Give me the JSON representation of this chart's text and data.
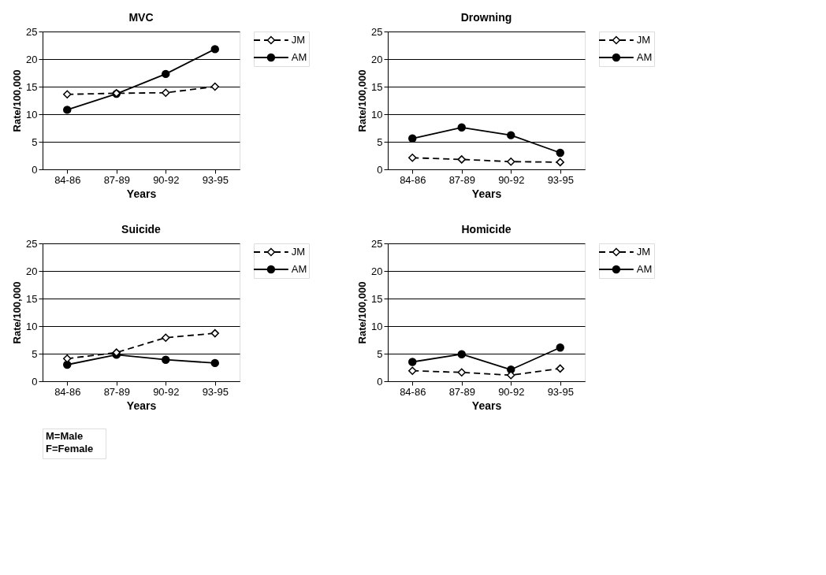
{
  "chart_data": [
    {
      "type": "line",
      "title": "MVC",
      "xlabel": "Years",
      "ylabel": "Rate/100,000",
      "categories": [
        "84-86",
        "87-89",
        "90-92",
        "93-95"
      ],
      "ylim": [
        0,
        25
      ],
      "yticks": [
        0,
        5,
        10,
        15,
        20,
        25
      ],
      "grid": "y",
      "legend": "right",
      "series": [
        {
          "name": "JM",
          "color": "#000000",
          "marker": "diamond",
          "line_style": "dashed",
          "values": [
            13.6,
            13.8,
            13.9,
            15.0
          ]
        },
        {
          "name": "AM",
          "color": "#000000",
          "marker": "circle",
          "line_style": "solid",
          "values": [
            10.8,
            13.7,
            17.3,
            21.8
          ]
        }
      ]
    },
    {
      "type": "line",
      "title": "Drowning",
      "xlabel": "Years",
      "ylabel": "Rate/100,000",
      "categories": [
        "84-86",
        "87-89",
        "90-92",
        "93-95"
      ],
      "ylim": [
        0,
        25
      ],
      "yticks": [
        0,
        5,
        10,
        15,
        20,
        25
      ],
      "grid": "y",
      "legend": "right",
      "series": [
        {
          "name": "JM",
          "color": "#000000",
          "marker": "diamond",
          "line_style": "dashed",
          "values": [
            2.1,
            1.8,
            1.4,
            1.3
          ]
        },
        {
          "name": "AM",
          "color": "#000000",
          "marker": "circle",
          "line_style": "solid",
          "values": [
            5.6,
            7.6,
            6.2,
            3.0
          ]
        }
      ]
    },
    {
      "type": "line",
      "title": "Suicide",
      "xlabel": "Years",
      "ylabel": "Rate/100,000",
      "categories": [
        "84-86",
        "87-89",
        "90-92",
        "93-95"
      ],
      "ylim": [
        0,
        25
      ],
      "yticks": [
        0,
        5,
        10,
        15,
        20,
        25
      ],
      "grid": "y",
      "legend": "right",
      "annotations": [
        "M=Male\nF=Female"
      ],
      "series": [
        {
          "name": "JM",
          "color": "#000000",
          "marker": "diamond",
          "line_style": "dashed",
          "values": [
            4.1,
            5.2,
            7.9,
            8.7
          ]
        },
        {
          "name": "AM",
          "color": "#000000",
          "marker": "circle",
          "line_style": "solid",
          "values": [
            3.0,
            4.8,
            3.9,
            3.3
          ]
        }
      ]
    },
    {
      "type": "line",
      "title": "Homicide",
      "xlabel": "Years",
      "ylabel": "Rate/100,000",
      "categories": [
        "84-86",
        "87-89",
        "90-92",
        "93-95"
      ],
      "ylim": [
        0,
        25
      ],
      "yticks": [
        0,
        5,
        10,
        15,
        20,
        25
      ],
      "grid": "y",
      "legend": "right",
      "series": [
        {
          "name": "JM",
          "color": "#000000",
          "marker": "diamond",
          "line_style": "dashed",
          "values": [
            1.9,
            1.6,
            1.1,
            2.3
          ]
        },
        {
          "name": "AM",
          "color": "#000000",
          "marker": "circle",
          "line_style": "solid",
          "values": [
            3.5,
            4.9,
            2.1,
            6.1
          ]
        }
      ]
    }
  ]
}
